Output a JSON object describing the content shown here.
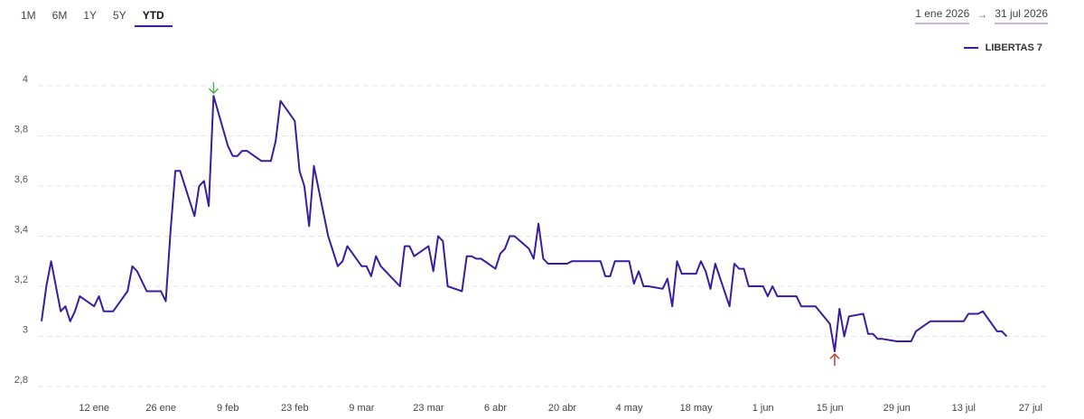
{
  "range_tabs": {
    "items": [
      "1M",
      "6M",
      "1Y",
      "5Y",
      "YTD"
    ],
    "active": "YTD"
  },
  "date_range": {
    "start": "1 ene 2026",
    "arrow": "→",
    "end": "31 jul 2026"
  },
  "colors": {
    "line": "#3a1d9e",
    "max_marker": "#4caf50",
    "min_marker": "#c0392b",
    "grid": "#e6e6e6"
  },
  "chart_data": {
    "type": "line",
    "title": "",
    "xlabel": "",
    "ylabel": "",
    "ylim": [
      2.8,
      4.0
    ],
    "yticks": [
      2.8,
      3.0,
      3.2,
      3.4,
      3.6,
      3.8,
      4.0
    ],
    "ytick_labels": [
      "2,8",
      "3",
      "3,2",
      "3,4",
      "3,6",
      "3,8",
      "4"
    ],
    "x_range": [
      "2026-01-01",
      "2026-07-31"
    ],
    "xticks": [
      {
        "date": "2026-01-12",
        "label": "12 ene"
      },
      {
        "date": "2026-01-26",
        "label": "26 ene"
      },
      {
        "date": "2026-02-09",
        "label": "9 feb"
      },
      {
        "date": "2026-02-23",
        "label": "23 feb"
      },
      {
        "date": "2026-03-09",
        "label": "9 mar"
      },
      {
        "date": "2026-03-23",
        "label": "23 mar"
      },
      {
        "date": "2026-04-06",
        "label": "6 abr"
      },
      {
        "date": "2026-04-20",
        "label": "20 abr"
      },
      {
        "date": "2026-05-04",
        "label": "4 may"
      },
      {
        "date": "2026-05-18",
        "label": "18 may"
      },
      {
        "date": "2026-06-01",
        "label": "1 jun"
      },
      {
        "date": "2026-06-15",
        "label": "15 jun"
      },
      {
        "date": "2026-06-29",
        "label": "29 jun"
      },
      {
        "date": "2026-07-13",
        "label": "13 jul"
      },
      {
        "date": "2026-07-27",
        "label": "27 jul"
      }
    ],
    "legend": {
      "position": "top-right",
      "entries": [
        "LIBERTAS 7"
      ]
    },
    "grid": true,
    "series": [
      {
        "name": "LIBERTAS 7",
        "points": [
          [
            "2026-01-01",
            3.06
          ],
          [
            "2026-01-02",
            3.2
          ],
          [
            "2026-01-03",
            3.3
          ],
          [
            "2026-01-05",
            3.1
          ],
          [
            "2026-01-06",
            3.12
          ],
          [
            "2026-01-07",
            3.06
          ],
          [
            "2026-01-08",
            3.1
          ],
          [
            "2026-01-09",
            3.16
          ],
          [
            "2026-01-12",
            3.12
          ],
          [
            "2026-01-13",
            3.16
          ],
          [
            "2026-01-14",
            3.1
          ],
          [
            "2026-01-15",
            3.1
          ],
          [
            "2026-01-16",
            3.1
          ],
          [
            "2026-01-19",
            3.18
          ],
          [
            "2026-01-20",
            3.28
          ],
          [
            "2026-01-21",
            3.26
          ],
          [
            "2026-01-22",
            3.22
          ],
          [
            "2026-01-23",
            3.18
          ],
          [
            "2026-01-26",
            3.18
          ],
          [
            "2026-01-27",
            3.14
          ],
          [
            "2026-01-28",
            3.42
          ],
          [
            "2026-01-29",
            3.66
          ],
          [
            "2026-01-30",
            3.66
          ],
          [
            "2026-02-02",
            3.48
          ],
          [
            "2026-02-03",
            3.6
          ],
          [
            "2026-02-04",
            3.62
          ],
          [
            "2026-02-05",
            3.52
          ],
          [
            "2026-02-06",
            3.96
          ],
          [
            "2026-02-09",
            3.76
          ],
          [
            "2026-02-10",
            3.72
          ],
          [
            "2026-02-11",
            3.72
          ],
          [
            "2026-02-12",
            3.74
          ],
          [
            "2026-02-13",
            3.74
          ],
          [
            "2026-02-16",
            3.7
          ],
          [
            "2026-02-17",
            3.7
          ],
          [
            "2026-02-18",
            3.7
          ],
          [
            "2026-02-19",
            3.78
          ],
          [
            "2026-02-20",
            3.94
          ],
          [
            "2026-02-23",
            3.86
          ],
          [
            "2026-02-24",
            3.66
          ],
          [
            "2026-02-25",
            3.6
          ],
          [
            "2026-02-26",
            3.44
          ],
          [
            "2026-02-27",
            3.68
          ],
          [
            "2026-03-02",
            3.4
          ],
          [
            "2026-03-03",
            3.34
          ],
          [
            "2026-03-04",
            3.28
          ],
          [
            "2026-03-05",
            3.3
          ],
          [
            "2026-03-06",
            3.36
          ],
          [
            "2026-03-09",
            3.28
          ],
          [
            "2026-03-10",
            3.28
          ],
          [
            "2026-03-11",
            3.24
          ],
          [
            "2026-03-12",
            3.32
          ],
          [
            "2026-03-13",
            3.28
          ],
          [
            "2026-03-16",
            3.22
          ],
          [
            "2026-03-17",
            3.2
          ],
          [
            "2026-03-18",
            3.36
          ],
          [
            "2026-03-19",
            3.36
          ],
          [
            "2026-03-20",
            3.32
          ],
          [
            "2026-03-23",
            3.36
          ],
          [
            "2026-03-24",
            3.26
          ],
          [
            "2026-03-25",
            3.4
          ],
          [
            "2026-03-26",
            3.38
          ],
          [
            "2026-03-27",
            3.2
          ],
          [
            "2026-03-30",
            3.18
          ],
          [
            "2026-03-31",
            3.32
          ],
          [
            "2026-04-01",
            3.32
          ],
          [
            "2026-04-02",
            3.31
          ],
          [
            "2026-04-03",
            3.31
          ],
          [
            "2026-04-06",
            3.27
          ],
          [
            "2026-04-07",
            3.33
          ],
          [
            "2026-04-08",
            3.35
          ],
          [
            "2026-04-09",
            3.4
          ],
          [
            "2026-04-10",
            3.4
          ],
          [
            "2026-04-13",
            3.35
          ],
          [
            "2026-04-14",
            3.31
          ],
          [
            "2026-04-15",
            3.45
          ],
          [
            "2026-04-16",
            3.31
          ],
          [
            "2026-04-17",
            3.29
          ],
          [
            "2026-04-20",
            3.29
          ],
          [
            "2026-04-21",
            3.29
          ],
          [
            "2026-04-22",
            3.3
          ],
          [
            "2026-04-23",
            3.3
          ],
          [
            "2026-04-24",
            3.3
          ],
          [
            "2026-04-27",
            3.3
          ],
          [
            "2026-04-28",
            3.3
          ],
          [
            "2026-04-29",
            3.24
          ],
          [
            "2026-04-30",
            3.24
          ],
          [
            "2026-05-01",
            3.3
          ],
          [
            "2026-05-04",
            3.3
          ],
          [
            "2026-05-05",
            3.21
          ],
          [
            "2026-05-06",
            3.26
          ],
          [
            "2026-05-07",
            3.2
          ],
          [
            "2026-05-08",
            3.2
          ],
          [
            "2026-05-11",
            3.19
          ],
          [
            "2026-05-12",
            3.23
          ],
          [
            "2026-05-13",
            3.12
          ],
          [
            "2026-05-14",
            3.3
          ],
          [
            "2026-05-15",
            3.25
          ],
          [
            "2026-05-18",
            3.25
          ],
          [
            "2026-05-19",
            3.3
          ],
          [
            "2026-05-20",
            3.26
          ],
          [
            "2026-05-21",
            3.19
          ],
          [
            "2026-05-22",
            3.29
          ],
          [
            "2026-05-25",
            3.12
          ],
          [
            "2026-05-26",
            3.29
          ],
          [
            "2026-05-27",
            3.27
          ],
          [
            "2026-05-28",
            3.27
          ],
          [
            "2026-05-29",
            3.2
          ],
          [
            "2026-06-01",
            3.2
          ],
          [
            "2026-06-02",
            3.16
          ],
          [
            "2026-06-03",
            3.2
          ],
          [
            "2026-06-04",
            3.16
          ],
          [
            "2026-06-05",
            3.16
          ],
          [
            "2026-06-08",
            3.16
          ],
          [
            "2026-06-09",
            3.12
          ],
          [
            "2026-06-10",
            3.12
          ],
          [
            "2026-06-11",
            3.12
          ],
          [
            "2026-06-12",
            3.12
          ],
          [
            "2026-06-15",
            3.05
          ],
          [
            "2026-06-16",
            2.94
          ],
          [
            "2026-06-17",
            3.11
          ],
          [
            "2026-06-18",
            3.0
          ],
          [
            "2026-06-19",
            3.08
          ],
          [
            "2026-06-22",
            3.09
          ],
          [
            "2026-06-23",
            3.01
          ],
          [
            "2026-06-24",
            3.01
          ],
          [
            "2026-06-25",
            2.99
          ],
          [
            "2026-06-26",
            2.99
          ],
          [
            "2026-06-29",
            2.98
          ],
          [
            "2026-06-30",
            2.98
          ],
          [
            "2026-07-01",
            2.98
          ],
          [
            "2026-07-02",
            2.98
          ],
          [
            "2026-07-03",
            3.02
          ],
          [
            "2026-07-06",
            3.06
          ],
          [
            "2026-07-07",
            3.06
          ],
          [
            "2026-07-08",
            3.06
          ],
          [
            "2026-07-09",
            3.06
          ],
          [
            "2026-07-10",
            3.06
          ],
          [
            "2026-07-13",
            3.06
          ],
          [
            "2026-07-14",
            3.09
          ],
          [
            "2026-07-15",
            3.09
          ],
          [
            "2026-07-16",
            3.09
          ],
          [
            "2026-07-17",
            3.1
          ],
          [
            "2026-07-20",
            3.02
          ],
          [
            "2026-07-21",
            3.02
          ],
          [
            "2026-07-22",
            3.0
          ]
        ]
      }
    ],
    "annotations": [
      {
        "type": "max-marker",
        "date": "2026-02-06",
        "value": 3.96,
        "symbol": "down-arrow",
        "color": "#4caf50"
      },
      {
        "type": "min-marker",
        "date": "2026-06-16",
        "value": 2.94,
        "symbol": "up-arrow",
        "color": "#c0392b"
      }
    ]
  }
}
